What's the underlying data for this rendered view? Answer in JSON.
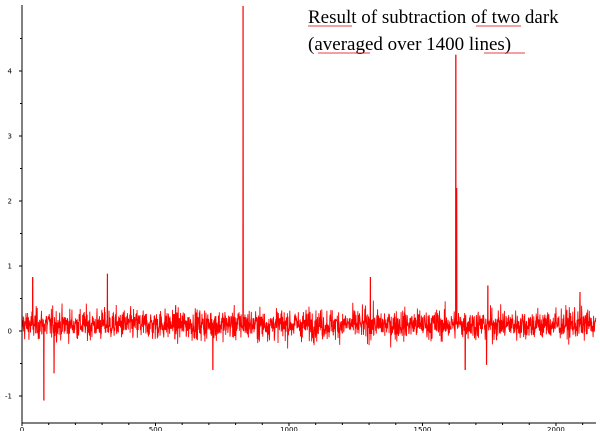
{
  "chart_data": {
    "type": "line",
    "title": "",
    "xlabel": "",
    "ylabel": "",
    "xlim": [
      0,
      2150
    ],
    "ylim": [
      -1.15,
      5.0
    ],
    "x_ticks": [
      0,
      500,
      1000,
      1500,
      2000
    ],
    "y_ticks": [
      -1,
      0,
      1,
      2,
      3,
      4
    ],
    "x_tick_labels": [
      "0",
      "500",
      "1000",
      "1500",
      "2000"
    ],
    "y_tick_labels": [
      "-1",
      "0",
      "1",
      "2",
      "3",
      "4"
    ],
    "grid": false,
    "series_color": "#ff0000",
    "annotation_lines": [
      "Result of subtraction of two dark",
      "(averaged over 1400 lines)"
    ],
    "series": [
      {
        "n_points": 2150,
        "baseline_mean": 0.1,
        "noise_amplitude": 0.22,
        "spikes": [
          {
            "x": 82,
            "y": -1.07
          },
          {
            "x": 40,
            "y": 0.83
          },
          {
            "x": 320,
            "y": 0.88
          },
          {
            "x": 828,
            "y": 5.0
          },
          {
            "x": 1305,
            "y": 0.83
          },
          {
            "x": 1625,
            "y": 4.25
          },
          {
            "x": 1628,
            "y": 2.2
          },
          {
            "x": 1660,
            "y": -0.6
          },
          {
            "x": 1745,
            "y": 0.7
          },
          {
            "x": 1740,
            "y": -0.52
          },
          {
            "x": 715,
            "y": -0.6
          },
          {
            "x": 120,
            "y": -0.65
          },
          {
            "x": 2090,
            "y": 0.6
          }
        ]
      }
    ]
  }
}
